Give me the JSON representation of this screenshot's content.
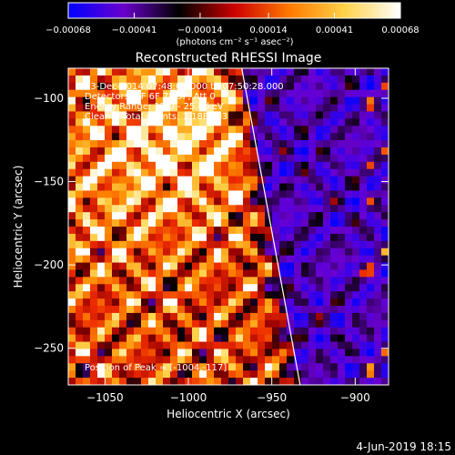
{
  "chart_data": {
    "type": "heatmap",
    "title": "Reconstructed RHESSI Image",
    "xlabel": "Heliocentric X (arcsec)",
    "ylabel": "Heliocentric Y (arcsec)",
    "xlim": [
      -1072,
      -880
    ],
    "ylim": [
      -272,
      -82
    ],
    "x_ticks": [
      -1050,
      -1000,
      -950,
      -900
    ],
    "y_ticks": [
      -100,
      -150,
      -200,
      -250
    ],
    "x_tick_labels": [
      "−1050",
      "−1000",
      "−950",
      "−900"
    ],
    "y_tick_labels": [
      "−100",
      "−150",
      "−200",
      "−250"
    ],
    "colorbar": {
      "range": [
        -0.00068,
        0.00068
      ],
      "ticks": [
        -0.00068,
        -0.00041,
        -0.00014,
        0.00014,
        0.00041,
        0.00068
      ],
      "tick_labels": [
        "−0.00068",
        "−0.00041",
        "−0.00014",
        "0.00014",
        "0.00041",
        "0.00068"
      ],
      "unit_label": "(photons cm⁻² s⁻¹ asec⁻²)",
      "colors": [
        "#0000ff",
        "#6a00cc",
        "#000000",
        "#cc0000",
        "#ff7a00",
        "#ffd24a",
        "#ffffff"
      ]
    },
    "limb_line": {
      "from": {
        "x": -968,
        "y": -82
      },
      "to": {
        "x": -933,
        "y": -272
      }
    },
    "peak": {
      "x": -1004,
      "y": -117
    },
    "annotations": [
      "13-Dec-2014 07:48:08.000 to 07:50:28.000",
      "Detectors: 3F 6F 7F 9F, Att 0",
      "Energy Range: 12.0 - 25.0 keV",
      "Clean    Total counts: 1.18E+03"
    ],
    "peak_label": "Position of Peak = [-1004,-117]",
    "timestamp": "4-Jun-2019 18:15",
    "grid": false
  }
}
